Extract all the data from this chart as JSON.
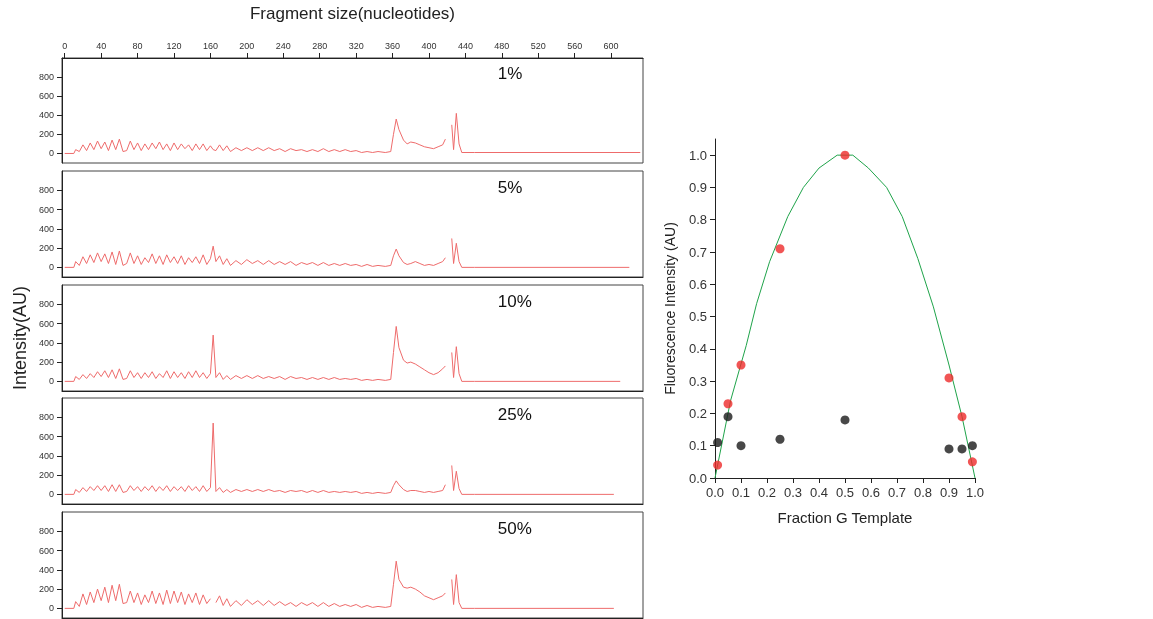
{
  "chart_data": [
    {
      "type": "line",
      "xlabel": "Fragment size(nucleotides)",
      "annotations": [
        "1%"
      ],
      "color": "#ee6b6b",
      "xlim": [
        -3,
        635
      ],
      "ylim": [
        -100,
        1000
      ],
      "xticks": [
        0,
        40,
        80,
        120,
        160,
        200,
        240,
        280,
        320,
        360,
        400,
        440,
        480,
        520,
        560,
        600
      ],
      "yticks": [
        0,
        200,
        400,
        600,
        800
      ],
      "x": [
        0,
        10,
        12,
        16,
        20,
        24,
        28,
        32,
        36,
        40,
        44,
        48,
        52,
        56,
        60,
        64,
        68,
        72,
        76,
        80,
        84,
        88,
        92,
        96,
        100,
        104,
        108,
        112,
        116,
        120,
        124,
        128,
        132,
        136,
        140,
        144,
        148,
        152,
        156,
        160,
        163,
        166,
        170,
        174,
        178,
        182,
        188,
        194,
        200,
        206,
        212,
        218,
        224,
        230,
        236,
        242,
        248,
        254,
        260,
        266,
        272,
        278,
        284,
        290,
        296,
        302,
        308,
        314,
        320,
        326,
        332,
        338,
        344,
        352,
        358,
        361,
        364,
        367,
        372,
        376,
        380,
        385,
        390,
        395,
        400,
        405,
        410,
        415,
        418,
        420,
        423,
        425,
        427,
        430,
        433,
        436,
        450,
        632
      ],
      "values": [
        0,
        0,
        40,
        20,
        90,
        30,
        110,
        40,
        130,
        50,
        120,
        30,
        140,
        40,
        150,
        20,
        30,
        130,
        40,
        110,
        30,
        100,
        40,
        110,
        50,
        120,
        40,
        100,
        30,
        110,
        40,
        100,
        50,
        90,
        30,
        100,
        40,
        100,
        30,
        80,
        40,
        30,
        90,
        30,
        80,
        20,
        60,
        30,
        60,
        30,
        60,
        30,
        60,
        30,
        50,
        20,
        50,
        30,
        40,
        20,
        40,
        20,
        50,
        20,
        40,
        20,
        40,
        20,
        30,
        10,
        20,
        10,
        20,
        10,
        20,
        200,
        360,
        250,
        140,
        100,
        120,
        110,
        90,
        70,
        60,
        50,
        70,
        90,
        150,
        null,
        null,
        300,
        40,
        420,
        100,
        10,
        10,
        10
      ]
    },
    {
      "type": "line",
      "annotations": [
        "5%"
      ],
      "color": "#ee6b6b",
      "xlim": [
        -3,
        635
      ],
      "ylim": [
        -100,
        1000
      ],
      "yticks": [
        0,
        200,
        400,
        600,
        800
      ],
      "tick_labels": "y",
      "x": [
        0,
        10,
        12,
        16,
        20,
        24,
        28,
        32,
        36,
        40,
        44,
        48,
        52,
        56,
        60,
        64,
        68,
        72,
        76,
        80,
        84,
        88,
        92,
        96,
        100,
        104,
        108,
        112,
        116,
        120,
        124,
        128,
        132,
        136,
        140,
        144,
        148,
        152,
        156,
        160,
        163,
        166,
        170,
        174,
        178,
        182,
        188,
        194,
        200,
        206,
        212,
        218,
        224,
        230,
        236,
        242,
        248,
        254,
        260,
        266,
        272,
        278,
        284,
        290,
        296,
        302,
        308,
        314,
        320,
        326,
        332,
        338,
        344,
        352,
        358,
        361,
        364,
        367,
        372,
        376,
        380,
        385,
        390,
        395,
        400,
        405,
        410,
        415,
        418,
        420,
        423,
        425,
        427,
        430,
        433,
        436,
        450,
        620
      ],
      "values": [
        0,
        0,
        60,
        20,
        110,
        40,
        130,
        50,
        150,
        60,
        140,
        40,
        160,
        30,
        170,
        20,
        40,
        150,
        40,
        120,
        30,
        100,
        50,
        140,
        40,
        120,
        30,
        130,
        50,
        110,
        40,
        120,
        30,
        100,
        50,
        110,
        40,
        130,
        30,
        90,
        220,
        60,
        120,
        30,
        90,
        20,
        70,
        30,
        80,
        40,
        70,
        30,
        70,
        30,
        60,
        30,
        60,
        20,
        50,
        30,
        50,
        20,
        50,
        20,
        40,
        20,
        40,
        20,
        30,
        10,
        30,
        10,
        20,
        10,
        20,
        120,
        190,
        120,
        50,
        30,
        40,
        60,
        40,
        20,
        30,
        20,
        40,
        60,
        100,
        null,
        null,
        300,
        40,
        250,
        60,
        0,
        0,
        0
      ]
    },
    {
      "type": "line",
      "ylabel": "Intensity(AU)",
      "annotations": [
        "10%"
      ],
      "color": "#ee6b6b",
      "xlim": [
        -3,
        635
      ],
      "ylim": [
        -100,
        1000
      ],
      "yticks": [
        0,
        200,
        400,
        600,
        800
      ],
      "tick_labels": "y",
      "x": [
        0,
        10,
        12,
        16,
        20,
        24,
        28,
        32,
        36,
        40,
        44,
        48,
        52,
        56,
        60,
        64,
        68,
        72,
        76,
        80,
        84,
        88,
        92,
        96,
        100,
        104,
        108,
        112,
        116,
        120,
        124,
        128,
        132,
        136,
        140,
        144,
        148,
        152,
        156,
        160,
        163,
        166,
        170,
        174,
        178,
        182,
        188,
        194,
        200,
        206,
        212,
        218,
        224,
        230,
        236,
        242,
        248,
        254,
        260,
        266,
        272,
        278,
        284,
        290,
        296,
        302,
        308,
        314,
        320,
        326,
        332,
        338,
        344,
        352,
        358,
        361,
        364,
        367,
        372,
        376,
        380,
        385,
        390,
        395,
        400,
        405,
        410,
        415,
        418,
        420,
        423,
        425,
        427,
        430,
        433,
        436,
        450,
        610
      ],
      "values": [
        0,
        0,
        50,
        20,
        70,
        30,
        80,
        40,
        100,
        50,
        110,
        40,
        120,
        30,
        130,
        20,
        30,
        110,
        40,
        90,
        30,
        90,
        40,
        100,
        30,
        80,
        40,
        110,
        30,
        100,
        40,
        90,
        30,
        100,
        40,
        110,
        40,
        90,
        30,
        80,
        480,
        40,
        90,
        20,
        60,
        20,
        60,
        30,
        60,
        30,
        60,
        30,
        50,
        30,
        50,
        20,
        50,
        30,
        40,
        20,
        40,
        20,
        40,
        20,
        40,
        20,
        30,
        20,
        30,
        10,
        20,
        10,
        20,
        10,
        20,
        300,
        570,
        350,
        220,
        190,
        200,
        180,
        150,
        120,
        90,
        70,
        90,
        130,
        160,
        null,
        null,
        300,
        40,
        360,
        80,
        0,
        0,
        0
      ]
    },
    {
      "type": "line",
      "annotations": [
        "25%"
      ],
      "color": "#ee6b6b",
      "xlim": [
        -3,
        635
      ],
      "ylim": [
        -100,
        1000
      ],
      "yticks": [
        0,
        200,
        400,
        600,
        800
      ],
      "tick_labels": "y",
      "x": [
        0,
        10,
        12,
        16,
        20,
        24,
        28,
        32,
        36,
        40,
        44,
        48,
        52,
        56,
        60,
        64,
        68,
        72,
        76,
        80,
        84,
        88,
        92,
        96,
        100,
        104,
        108,
        112,
        116,
        120,
        124,
        128,
        132,
        136,
        140,
        144,
        148,
        152,
        156,
        160,
        163,
        166,
        170,
        174,
        178,
        182,
        188,
        194,
        200,
        206,
        212,
        218,
        224,
        230,
        236,
        242,
        248,
        254,
        260,
        266,
        272,
        278,
        284,
        290,
        296,
        302,
        308,
        314,
        320,
        326,
        332,
        338,
        344,
        352,
        358,
        361,
        364,
        367,
        372,
        376,
        380,
        385,
        390,
        395,
        400,
        405,
        410,
        415,
        418,
        420,
        423,
        425,
        427,
        430,
        433,
        436,
        450,
        603
      ],
      "values": [
        0,
        0,
        50,
        20,
        70,
        30,
        80,
        40,
        90,
        40,
        90,
        30,
        100,
        30,
        100,
        20,
        30,
        90,
        40,
        80,
        30,
        80,
        40,
        90,
        30,
        80,
        40,
        90,
        30,
        80,
        40,
        80,
        30,
        90,
        40,
        80,
        30,
        90,
        30,
        70,
        740,
        30,
        70,
        20,
        50,
        20,
        50,
        30,
        50,
        30,
        50,
        30,
        50,
        30,
        40,
        20,
        40,
        30,
        40,
        20,
        40,
        20,
        40,
        20,
        30,
        20,
        30,
        20,
        30,
        10,
        20,
        10,
        20,
        10,
        20,
        90,
        140,
        100,
        50,
        30,
        40,
        40,
        30,
        20,
        30,
        20,
        30,
        40,
        100,
        null,
        null,
        300,
        40,
        240,
        60,
        0,
        0,
        0
      ]
    },
    {
      "type": "line",
      "annotations": [
        "50%"
      ],
      "color": "#ee6b6b",
      "xlim": [
        -3,
        635
      ],
      "ylim": [
        -100,
        1000
      ],
      "yticks": [
        0,
        200,
        400,
        600,
        800
      ],
      "tick_labels": "y",
      "x": [
        0,
        10,
        12,
        16,
        20,
        24,
        28,
        32,
        36,
        40,
        44,
        48,
        52,
        56,
        60,
        64,
        68,
        72,
        76,
        80,
        84,
        88,
        92,
        96,
        100,
        104,
        108,
        112,
        116,
        120,
        124,
        128,
        132,
        136,
        140,
        144,
        148,
        152,
        156,
        160,
        163,
        166,
        170,
        174,
        178,
        182,
        188,
        194,
        200,
        206,
        212,
        218,
        224,
        230,
        236,
        242,
        248,
        254,
        260,
        266,
        272,
        278,
        284,
        290,
        296,
        302,
        308,
        314,
        320,
        326,
        332,
        338,
        344,
        352,
        358,
        361,
        364,
        367,
        372,
        376,
        380,
        385,
        390,
        395,
        400,
        405,
        410,
        415,
        418,
        420,
        423,
        425,
        427,
        430,
        433,
        436,
        450,
        603
      ],
      "values": [
        0,
        0,
        70,
        20,
        150,
        40,
        170,
        60,
        200,
        80,
        220,
        60,
        240,
        80,
        250,
        50,
        60,
        180,
        60,
        160,
        40,
        140,
        60,
        180,
        50,
        160,
        40,
        190,
        50,
        180,
        60,
        170,
        40,
        150,
        60,
        160,
        40,
        140,
        50,
        100,
        null,
        60,
        130,
        30,
        100,
        20,
        80,
        30,
        90,
        40,
        80,
        30,
        80,
        30,
        70,
        30,
        60,
        20,
        60,
        30,
        60,
        20,
        60,
        20,
        50,
        20,
        40,
        20,
        40,
        10,
        30,
        10,
        20,
        10,
        20,
        250,
        490,
        300,
        220,
        210,
        220,
        200,
        170,
        130,
        110,
        90,
        110,
        130,
        160,
        null,
        null,
        300,
        40,
        350,
        60,
        0,
        0,
        0
      ]
    },
    {
      "type": "scatter",
      "xlabel": "Fraction G Template",
      "ylabel": "Fluorescence Intensity (AU)",
      "marker": "circle",
      "xlim": [
        0,
        1
      ],
      "ylim": [
        0,
        1.05
      ],
      "xticks": [
        {
          "value": 0,
          "label": "0.0"
        },
        0.1,
        0.2,
        0.3,
        0.4,
        0.5,
        0.6,
        0.7,
        0.8,
        0.9,
        {
          "value": 1,
          "label": "1.0"
        }
      ],
      "yticks": [
        {
          "value": 0,
          "label": "0.0"
        },
        0.1,
        0.2,
        0.3,
        0.4,
        0.5,
        0.6,
        0.7,
        0.8,
        0.9,
        {
          "value": 1,
          "label": "1.0"
        }
      ],
      "series": [
        {
          "color": "#ee2b2b",
          "x": [
            0.01,
            0.05,
            0.1,
            0.25,
            0.5,
            0.9,
            0.95,
            0.99
          ],
          "values": [
            0.04,
            0.23,
            0.35,
            0.71,
            1.0,
            0.31,
            0.19,
            0.05
          ]
        },
        {
          "color": "#1a1a1a",
          "x": [
            0.01,
            0.05,
            0.1,
            0.25,
            0.5,
            0.9,
            0.95,
            0.99
          ],
          "values": [
            0.11,
            0.19,
            0.1,
            0.12,
            0.18,
            0.09,
            0.09,
            0.1
          ]
        },
        {
          "type": "line",
          "marker": "none",
          "color": "#1fa34a",
          "x": [
            0,
            0.06,
            0.12,
            0.16,
            0.21,
            0.28,
            0.34,
            0.4,
            0.47,
            0.53,
            0.59,
            0.66,
            0.72,
            0.78,
            0.84,
            0.9,
            0.95,
            1
          ],
          "values": [
            0,
            0.24,
            0.41,
            0.54,
            0.67,
            0.81,
            0.9,
            0.96,
            1.0,
            1.0,
            0.96,
            0.9,
            0.81,
            0.68,
            0.53,
            0.35,
            0.19,
            0
          ]
        }
      ]
    }
  ]
}
